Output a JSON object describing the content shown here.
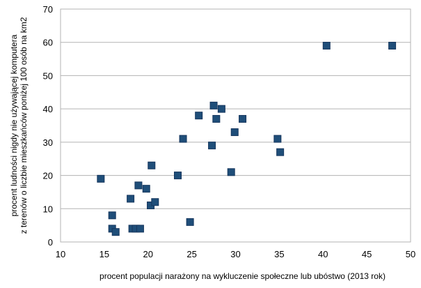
{
  "chart_data": {
    "type": "scatter",
    "xlabel": "procent populacji narażony na wykluczenie społeczne lub ubóstwo (2013 rok)",
    "ylabel_lines": [
      "procent ludności nigdy nie używającej komputera",
      "z terenów o liczbie mieszkańców poniżej 100 osób na km2"
    ],
    "xlim": [
      10,
      50
    ],
    "ylim": [
      0,
      70
    ],
    "x_ticks": [
      "10",
      "15",
      "20",
      "25",
      "30",
      "35",
      "40",
      "45",
      "50"
    ],
    "y_ticks": [
      "0",
      "10",
      "20",
      "30",
      "40",
      "50",
      "60",
      "70"
    ],
    "grid": "horizontal",
    "marker": "square",
    "colors": {
      "marker_fill": "#1f4e79",
      "marker_edge": "#17375e",
      "grid": "#b3b3b3"
    },
    "series": [
      {
        "points": [
          {
            "x": 14.6,
            "y": 19
          },
          {
            "x": 15.9,
            "y": 8
          },
          {
            "x": 15.9,
            "y": 4
          },
          {
            "x": 16.3,
            "y": 3
          },
          {
            "x": 18.0,
            "y": 13
          },
          {
            "x": 18.2,
            "y": 4
          },
          {
            "x": 18.6,
            "y": 4
          },
          {
            "x": 18.9,
            "y": 17
          },
          {
            "x": 19.1,
            "y": 4
          },
          {
            "x": 19.8,
            "y": 16
          },
          {
            "x": 20.3,
            "y": 11
          },
          {
            "x": 20.4,
            "y": 23
          },
          {
            "x": 20.8,
            "y": 12
          },
          {
            "x": 23.4,
            "y": 20
          },
          {
            "x": 24.0,
            "y": 31
          },
          {
            "x": 24.8,
            "y": 6
          },
          {
            "x": 25.8,
            "y": 38
          },
          {
            "x": 27.3,
            "y": 29
          },
          {
            "x": 27.5,
            "y": 41
          },
          {
            "x": 27.8,
            "y": 37
          },
          {
            "x": 28.4,
            "y": 40
          },
          {
            "x": 29.5,
            "y": 21
          },
          {
            "x": 29.9,
            "y": 33
          },
          {
            "x": 30.8,
            "y": 37
          },
          {
            "x": 34.8,
            "y": 31
          },
          {
            "x": 35.1,
            "y": 27
          },
          {
            "x": 40.4,
            "y": 59
          },
          {
            "x": 47.9,
            "y": 59
          }
        ]
      }
    ]
  }
}
